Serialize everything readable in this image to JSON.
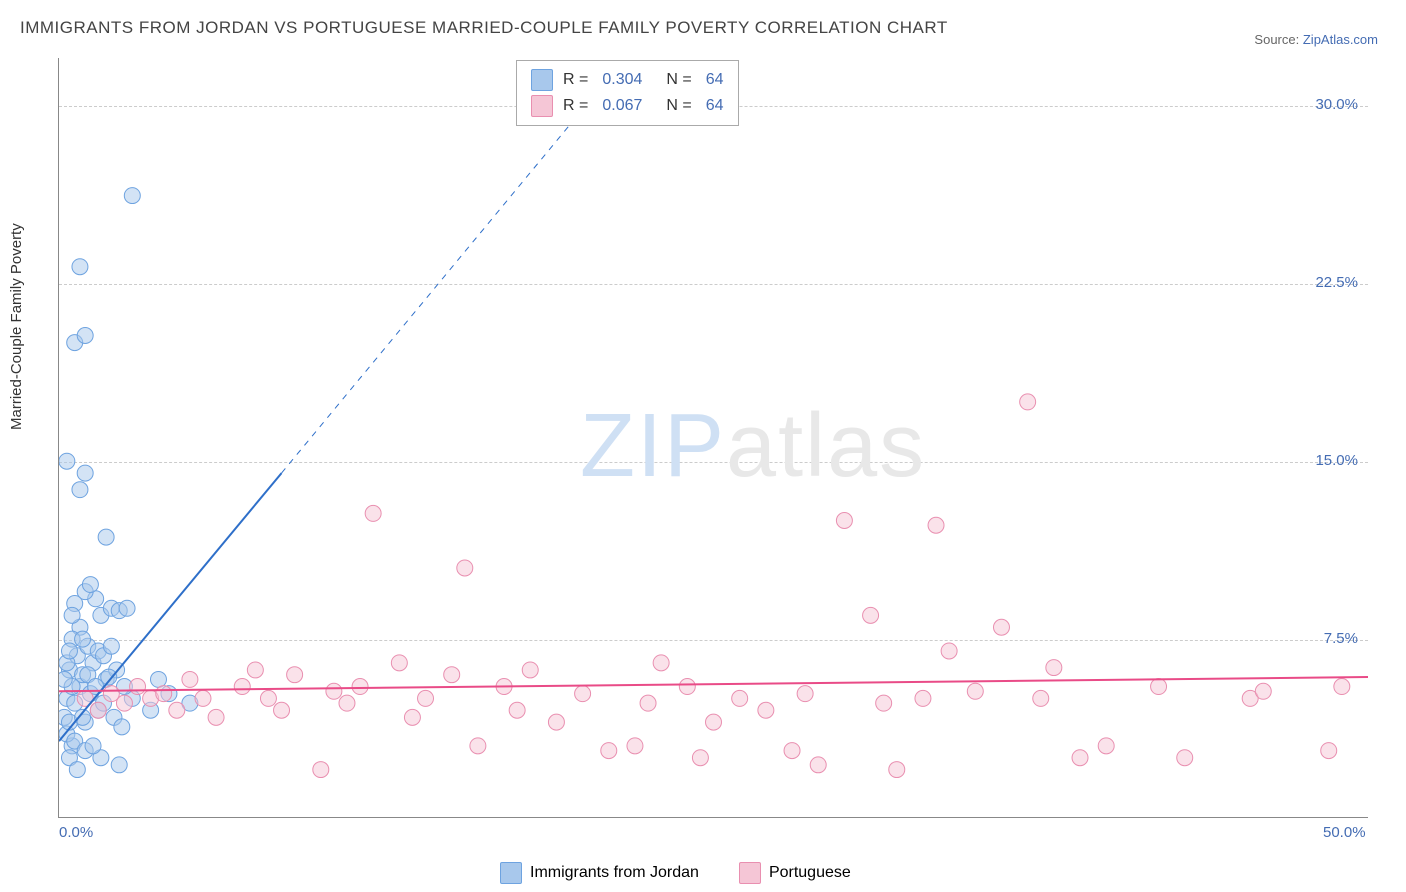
{
  "title": "IMMIGRANTS FROM JORDAN VS PORTUGUESE MARRIED-COUPLE FAMILY POVERTY CORRELATION CHART",
  "source_label": "Source:",
  "source_name": "ZipAtlas.com",
  "ylabel": "Married-Couple Family Poverty",
  "watermark_part1": "ZIP",
  "watermark_part2": "atlas",
  "chart": {
    "type": "scatter",
    "xlim": [
      0,
      50
    ],
    "ylim": [
      0,
      32
    ],
    "ytick_values": [
      7.5,
      15.0,
      22.5,
      30.0
    ],
    "ytick_labels": [
      "7.5%",
      "15.0%",
      "22.5%",
      "30.0%"
    ],
    "xtick_values": [
      0,
      50
    ],
    "xtick_labels": [
      "0.0%",
      "50.0%"
    ],
    "background_color": "#ffffff",
    "grid_color": "#cccccc",
    "marker_radius": 8,
    "marker_opacity": 0.5,
    "series": [
      {
        "name": "Immigrants from Jordan",
        "color_fill": "#a8c8ec",
        "color_stroke": "#6ea3e0",
        "r_value": "0.304",
        "n_value": "64",
        "trend": {
          "color": "#2e6fc9",
          "width": 2,
          "x0": 0,
          "y0": 3.2,
          "x1": 8.5,
          "y1": 14.5,
          "dash_x1": 20.5,
          "dash_y1": 30.5
        },
        "points": [
          [
            0.2,
            4.2
          ],
          [
            0.3,
            5.0
          ],
          [
            0.5,
            3.0
          ],
          [
            0.4,
            6.2
          ],
          [
            0.6,
            4.8
          ],
          [
            0.8,
            5.5
          ],
          [
            1.0,
            4.0
          ],
          [
            0.3,
            3.5
          ],
          [
            0.7,
            6.8
          ],
          [
            1.2,
            5.2
          ],
          [
            0.9,
            6.0
          ],
          [
            1.5,
            4.5
          ],
          [
            0.4,
            4.0
          ],
          [
            0.6,
            3.2
          ],
          [
            1.8,
            5.8
          ],
          [
            1.1,
            7.2
          ],
          [
            0.5,
            5.5
          ],
          [
            1.3,
            6.5
          ],
          [
            0.8,
            8.0
          ],
          [
            1.6,
            8.5
          ],
          [
            2.0,
            8.8
          ],
          [
            2.3,
            8.7
          ],
          [
            2.6,
            8.8
          ],
          [
            1.4,
            9.2
          ],
          [
            1.0,
            9.5
          ],
          [
            0.6,
            9.0
          ],
          [
            1.2,
            9.8
          ],
          [
            1.8,
            11.8
          ],
          [
            0.5,
            7.5
          ],
          [
            0.3,
            6.5
          ],
          [
            1.5,
            7.0
          ],
          [
            2.2,
            6.2
          ],
          [
            1.9,
            5.9
          ],
          [
            0.9,
            4.2
          ],
          [
            1.7,
            4.8
          ],
          [
            2.1,
            4.2
          ],
          [
            2.4,
            3.8
          ],
          [
            0.4,
            2.5
          ],
          [
            1.0,
            2.8
          ],
          [
            1.6,
            2.5
          ],
          [
            2.3,
            2.2
          ],
          [
            0.7,
            2.0
          ],
          [
            1.3,
            3.0
          ],
          [
            0.2,
            5.8
          ],
          [
            0.5,
            8.5
          ],
          [
            0.8,
            13.8
          ],
          [
            1.0,
            14.5
          ],
          [
            0.3,
            15.0
          ],
          [
            0.4,
            7.0
          ],
          [
            1.1,
            6.0
          ],
          [
            3.5,
            4.5
          ],
          [
            4.2,
            5.2
          ],
          [
            5.0,
            4.8
          ],
          [
            3.8,
            5.8
          ],
          [
            2.8,
            5.0
          ],
          [
            0.6,
            20.0
          ],
          [
            1.0,
            20.3
          ],
          [
            0.8,
            23.2
          ],
          [
            2.8,
            26.2
          ],
          [
            1.4,
            5.5
          ],
          [
            1.7,
            6.8
          ],
          [
            0.9,
            7.5
          ],
          [
            2.0,
            7.2
          ],
          [
            2.5,
            5.5
          ]
        ]
      },
      {
        "name": "Portuguese",
        "color_fill": "#f5c6d6",
        "color_stroke": "#e98fb0",
        "r_value": "0.067",
        "n_value": "64",
        "trend": {
          "color": "#e94b87",
          "width": 2,
          "x0": 0,
          "y0": 5.3,
          "x1": 50,
          "y1": 5.9
        },
        "points": [
          [
            1.0,
            5.0
          ],
          [
            1.5,
            4.5
          ],
          [
            2.0,
            5.2
          ],
          [
            2.5,
            4.8
          ],
          [
            3.0,
            5.5
          ],
          [
            3.5,
            5.0
          ],
          [
            4.0,
            5.2
          ],
          [
            4.5,
            4.5
          ],
          [
            5.0,
            5.8
          ],
          [
            5.5,
            5.0
          ],
          [
            6.0,
            4.2
          ],
          [
            7.0,
            5.5
          ],
          [
            7.5,
            6.2
          ],
          [
            8.0,
            5.0
          ],
          [
            8.5,
            4.5
          ],
          [
            9.0,
            6.0
          ],
          [
            10.0,
            2.0
          ],
          [
            10.5,
            5.3
          ],
          [
            11.0,
            4.8
          ],
          [
            11.5,
            5.5
          ],
          [
            12.0,
            12.8
          ],
          [
            13.0,
            6.5
          ],
          [
            13.5,
            4.2
          ],
          [
            14.0,
            5.0
          ],
          [
            15.0,
            6.0
          ],
          [
            15.5,
            10.5
          ],
          [
            16.0,
            3.0
          ],
          [
            17.0,
            5.5
          ],
          [
            17.5,
            4.5
          ],
          [
            18.0,
            6.2
          ],
          [
            19.0,
            4.0
          ],
          [
            20.0,
            5.2
          ],
          [
            21.0,
            2.8
          ],
          [
            22.0,
            3.0
          ],
          [
            22.5,
            4.8
          ],
          [
            23.0,
            6.5
          ],
          [
            24.0,
            5.5
          ],
          [
            24.5,
            2.5
          ],
          [
            25.0,
            4.0
          ],
          [
            26.0,
            5.0
          ],
          [
            27.0,
            4.5
          ],
          [
            28.5,
            5.2
          ],
          [
            29.0,
            2.2
          ],
          [
            30.0,
            12.5
          ],
          [
            31.0,
            8.5
          ],
          [
            31.5,
            4.8
          ],
          [
            32.0,
            2.0
          ],
          [
            33.0,
            5.0
          ],
          [
            33.5,
            12.3
          ],
          [
            34.0,
            7.0
          ],
          [
            35.0,
            5.3
          ],
          [
            36.0,
            8.0
          ],
          [
            37.0,
            17.5
          ],
          [
            37.5,
            5.0
          ],
          [
            38.0,
            6.3
          ],
          [
            39.0,
            2.5
          ],
          [
            40.0,
            3.0
          ],
          [
            42.0,
            5.5
          ],
          [
            43.0,
            2.5
          ],
          [
            45.5,
            5.0
          ],
          [
            46.0,
            5.3
          ],
          [
            48.5,
            2.8
          ],
          [
            49.0,
            5.5
          ],
          [
            28.0,
            2.8
          ]
        ]
      }
    ]
  },
  "legend_bottom": [
    {
      "label": "Immigrants from Jordan",
      "fill": "#a8c8ec",
      "stroke": "#6ea3e0"
    },
    {
      "label": "Portuguese",
      "fill": "#f5c6d6",
      "stroke": "#e98fb0"
    }
  ]
}
